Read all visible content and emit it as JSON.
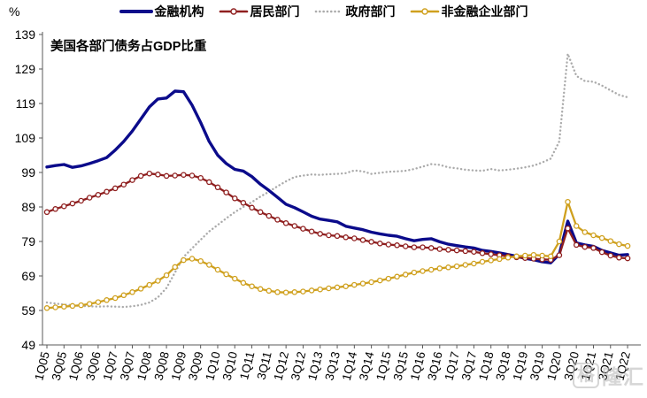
{
  "meta": {
    "watermark_box": "格",
    "watermark_text": "隆汇"
  },
  "chart_data": {
    "type": "line",
    "title": "美国各部门债务占GDP比重",
    "y_unit": "%",
    "ylim": [
      49,
      139
    ],
    "ytick_step": 10,
    "ytick_labels": [
      "49",
      "59",
      "69",
      "79",
      "89",
      "99",
      "109",
      "119",
      "129",
      "139"
    ],
    "xtick_step": 2,
    "grid": false,
    "legend_position": "top-center",
    "x": [
      "1Q05",
      "2Q05",
      "3Q05",
      "4Q05",
      "1Q06",
      "2Q06",
      "3Q06",
      "4Q06",
      "1Q07",
      "2Q07",
      "3Q07",
      "4Q07",
      "1Q08",
      "2Q08",
      "3Q08",
      "4Q08",
      "1Q09",
      "2Q09",
      "3Q09",
      "4Q09",
      "1Q10",
      "2Q10",
      "3Q10",
      "4Q10",
      "1Q11",
      "2Q11",
      "3Q11",
      "4Q11",
      "1Q12",
      "2Q12",
      "3Q12",
      "4Q12",
      "1Q13",
      "2Q13",
      "3Q13",
      "4Q13",
      "1Q14",
      "2Q14",
      "3Q14",
      "4Q14",
      "1Q15",
      "2Q15",
      "3Q15",
      "4Q15",
      "1Q16",
      "2Q16",
      "3Q16",
      "4Q16",
      "1Q17",
      "2Q17",
      "3Q17",
      "4Q17",
      "1Q18",
      "2Q18",
      "3Q18",
      "4Q18",
      "1Q19",
      "2Q19",
      "3Q19",
      "4Q19",
      "1Q20",
      "2Q20",
      "3Q20",
      "4Q20",
      "1Q21",
      "2Q21",
      "3Q21",
      "4Q21",
      "1Q22"
    ],
    "series": [
      {
        "name": "金融机构",
        "color": "#0b0b8b",
        "line": "solid",
        "width": 3.4,
        "marker": false,
        "values": [
          100.6,
          101.0,
          101.3,
          100.5,
          100.9,
          101.6,
          102.4,
          103.3,
          105.5,
          108.0,
          111.0,
          114.5,
          118.0,
          120.3,
          120.6,
          122.6,
          122.4,
          118.5,
          113.5,
          108.0,
          104.0,
          101.6,
          99.9,
          99.4,
          97.8,
          95.6,
          93.8,
          91.8,
          89.8,
          88.8,
          87.6,
          86.3,
          85.5,
          85.1,
          84.7,
          83.4,
          82.9,
          82.4,
          81.7,
          81.2,
          80.8,
          80.5,
          79.8,
          79.2,
          79.6,
          79.8,
          78.9,
          78.2,
          77.8,
          77.4,
          77.1,
          76.4,
          76.1,
          75.7,
          75.2,
          74.7,
          74.1,
          73.7,
          73.1,
          72.8,
          75.3,
          84.9,
          78.6,
          78.0,
          77.6,
          76.4,
          75.7,
          75.0,
          75.2
        ]
      },
      {
        "name": "居民部门",
        "color": "#8f1f1f",
        "line": "solid",
        "width": 2.3,
        "marker": true,
        "values": [
          87.5,
          88.4,
          89.2,
          90.0,
          90.8,
          91.7,
          92.5,
          93.4,
          94.4,
          95.5,
          96.8,
          98.0,
          98.7,
          98.4,
          98.0,
          98.1,
          98.3,
          98.1,
          97.4,
          96.2,
          94.7,
          93.2,
          91.5,
          90.2,
          88.8,
          87.5,
          86.4,
          85.3,
          84.3,
          83.5,
          82.7,
          81.9,
          81.2,
          80.8,
          80.6,
          80.2,
          79.9,
          79.4,
          78.9,
          78.4,
          78.1,
          77.9,
          77.6,
          77.3,
          77.3,
          77.1,
          76.8,
          76.6,
          76.4,
          76.2,
          76.0,
          75.6,
          75.3,
          75.0,
          74.7,
          74.4,
          74.2,
          74.0,
          73.8,
          73.7,
          75.0,
          82.8,
          78.0,
          77.4,
          77.1,
          75.9,
          74.9,
          74.3,
          74.1
        ]
      },
      {
        "name": "政府部门",
        "color": "#ababab",
        "line": "dotted",
        "width": 2.4,
        "marker": false,
        "values": [
          61.3,
          61.0,
          60.7,
          60.5,
          60.3,
          60.2,
          60.1,
          60.2,
          60.1,
          60.0,
          60.2,
          60.6,
          61.3,
          62.8,
          65.5,
          70.0,
          74.5,
          77.0,
          79.5,
          81.9,
          83.8,
          85.7,
          87.5,
          89.0,
          90.4,
          92.0,
          93.4,
          95.0,
          96.4,
          97.7,
          98.1,
          98.4,
          98.3,
          98.5,
          98.6,
          98.8,
          99.6,
          99.3,
          98.6,
          98.9,
          99.2,
          99.3,
          99.5,
          100.0,
          100.7,
          101.4,
          101.2,
          100.5,
          100.2,
          99.8,
          99.6,
          99.5,
          100.0,
          99.6,
          99.8,
          100.1,
          100.5,
          101.0,
          101.9,
          103.0,
          108.0,
          133.4,
          127.0,
          125.5,
          125.3,
          124.2,
          122.8,
          121.5,
          120.8
        ]
      },
      {
        "name": "非金融企业部门",
        "color": "#cfa01e",
        "line": "solid",
        "width": 2.3,
        "marker": true,
        "values": [
          59.7,
          59.9,
          60.1,
          60.3,
          60.5,
          60.9,
          61.4,
          62.0,
          62.6,
          63.4,
          64.3,
          65.3,
          66.4,
          67.6,
          69.2,
          71.6,
          73.6,
          74.0,
          73.3,
          72.2,
          70.8,
          69.5,
          68.2,
          67.0,
          66.0,
          65.2,
          64.7,
          64.3,
          64.2,
          64.3,
          64.5,
          64.8,
          65.1,
          65.4,
          65.7,
          66.0,
          66.4,
          66.8,
          67.2,
          67.7,
          68.2,
          68.8,
          69.4,
          70.0,
          70.4,
          70.8,
          71.2,
          71.5,
          71.8,
          72.2,
          72.6,
          73.1,
          73.5,
          73.9,
          74.3,
          74.7,
          74.9,
          75.1,
          74.9,
          74.7,
          79.0,
          90.5,
          83.5,
          81.7,
          80.8,
          80.0,
          79.1,
          78.2,
          77.7
        ]
      }
    ]
  }
}
